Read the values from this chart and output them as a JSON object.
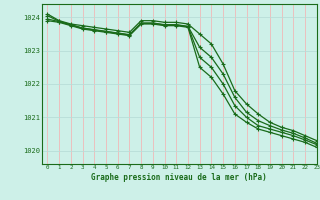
{
  "title": "Graphe pression niveau de la mer (hPa)",
  "bg_color": "#cdf0e8",
  "grid_color_h": "#b8ddd8",
  "grid_color_v": "#f0b8b8",
  "line_color": "#1a6b1a",
  "x_labels": [
    "0",
    "1",
    "2",
    "3",
    "4",
    "5",
    "6",
    "7",
    "8",
    "9",
    "10",
    "11",
    "12",
    "13",
    "14",
    "15",
    "16",
    "17",
    "18",
    "19",
    "20",
    "21",
    "22",
    "23"
  ],
  "xlim": [
    -0.5,
    23
  ],
  "ylim": [
    1019.6,
    1024.4
  ],
  "yticks": [
    1020,
    1021,
    1022,
    1023,
    1024
  ],
  "series": [
    [
      1024.1,
      1023.9,
      1023.8,
      1023.75,
      1023.7,
      1023.65,
      1023.6,
      1023.55,
      1023.9,
      1023.9,
      1023.85,
      1023.85,
      1023.8,
      1023.5,
      1023.2,
      1022.6,
      1021.8,
      1021.4,
      1021.1,
      1020.85,
      1020.7,
      1020.6,
      1020.45,
      1020.3
    ],
    [
      1023.9,
      1023.85,
      1023.75,
      1023.65,
      1023.6,
      1023.55,
      1023.5,
      1023.45,
      1023.8,
      1023.8,
      1023.75,
      1023.75,
      1023.7,
      1022.5,
      1022.2,
      1021.7,
      1021.1,
      1020.85,
      1020.65,
      1020.55,
      1020.45,
      1020.35,
      1020.25,
      1020.1
    ],
    [
      1023.95,
      1023.87,
      1023.77,
      1023.67,
      1023.62,
      1023.57,
      1023.52,
      1023.47,
      1023.82,
      1023.82,
      1023.77,
      1023.77,
      1023.72,
      1022.8,
      1022.5,
      1022.0,
      1021.35,
      1021.0,
      1020.75,
      1020.65,
      1020.55,
      1020.45,
      1020.32,
      1020.18
    ],
    [
      1024.05,
      1023.88,
      1023.78,
      1023.68,
      1023.63,
      1023.58,
      1023.53,
      1023.48,
      1023.83,
      1023.83,
      1023.78,
      1023.78,
      1023.73,
      1023.1,
      1022.8,
      1022.3,
      1021.6,
      1021.15,
      1020.9,
      1020.75,
      1020.62,
      1020.52,
      1020.38,
      1020.22
    ]
  ]
}
